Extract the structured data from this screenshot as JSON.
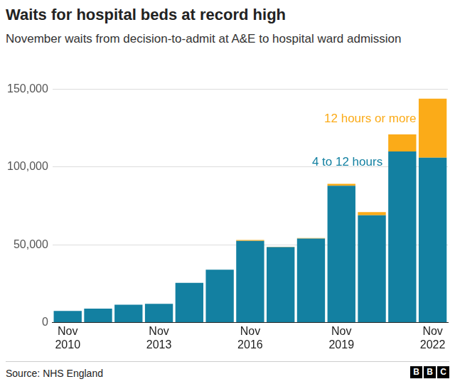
{
  "chart_data": {
    "type": "bar",
    "title": "Waits for hospital beds at record high",
    "subtitle": "November waits from decision-to-admit at A&E to hospital ward admission",
    "categories": [
      "Nov 2010",
      null,
      null,
      "Nov 2013",
      null,
      null,
      "Nov 2016",
      null,
      null,
      "Nov 2019",
      null,
      null,
      "Nov 2022"
    ],
    "series": [
      {
        "name": "4 to 12 hours",
        "color": "#1380a1",
        "values": [
          7500,
          9000,
          11500,
          12000,
          25500,
          34000,
          52500,
          48500,
          54000,
          88000,
          69000,
          110000,
          106000
        ]
      },
      {
        "name": "12 hours or more",
        "color": "#fbab18",
        "values": [
          0,
          0,
          0,
          0,
          0,
          0,
          600,
          300,
          400,
          1200,
          2000,
          11000,
          38000
        ]
      }
    ],
    "stacked": true,
    "ylim": [
      0,
      150000
    ],
    "yticks": [
      0,
      {
        "value": 50000,
        "label": "50,000"
      },
      {
        "value": 100000,
        "label": "100,000"
      },
      {
        "value": 150000,
        "label": "150,000"
      }
    ],
    "grid": true,
    "source": "Source: NHS England",
    "logo": "BBC"
  }
}
